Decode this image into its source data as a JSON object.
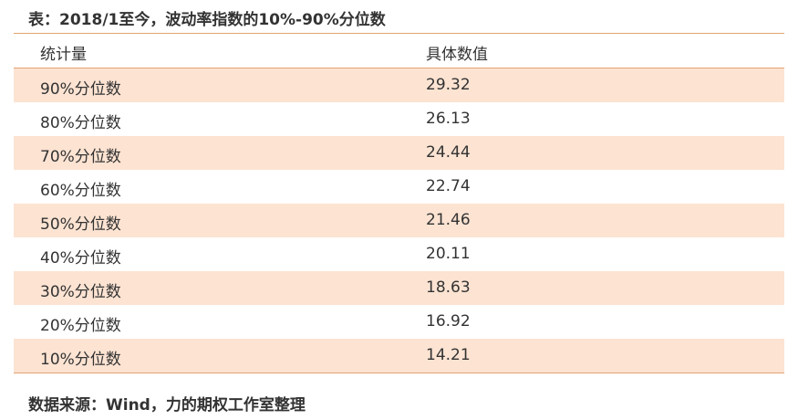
{
  "title": "表：2018/1至今，波动率指数的10%-90%分位数",
  "table": {
    "headers": [
      "统计量",
      "具体数值"
    ],
    "rows": [
      [
        "90%分位数",
        "29.32"
      ],
      [
        "80%分位数",
        "26.13"
      ],
      [
        "70%分位数",
        "24.44"
      ],
      [
        "60%分位数",
        "22.74"
      ],
      [
        "50%分位数",
        "21.46"
      ],
      [
        "40%分位数",
        "20.11"
      ],
      [
        "30%分位数",
        "18.63"
      ],
      [
        "20%分位数",
        "16.92"
      ],
      [
        "10%分位数",
        "14.21"
      ]
    ]
  },
  "source": "数据来源：Wind，力的期权工作室整理",
  "colors": {
    "row_shade": "#fce3d2",
    "border": "#e3a46f"
  }
}
